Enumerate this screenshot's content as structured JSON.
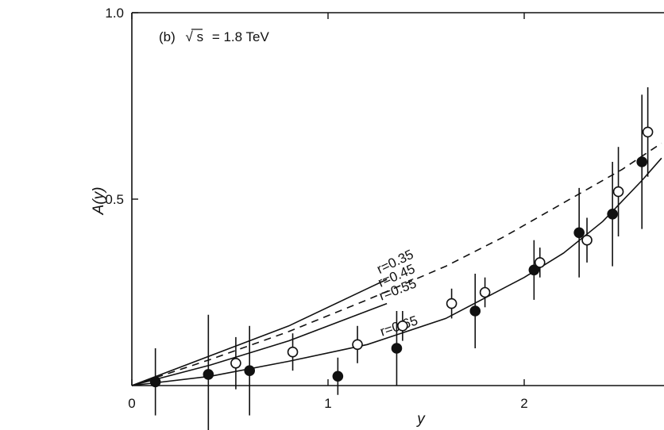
{
  "chart_data": {
    "type": "scatter",
    "title": "",
    "annotation": {
      "panel": "(b)",
      "sqrt_symbol": "√",
      "s_var": "s",
      "energy": "= 1.8 TeV"
    },
    "xlabel": "y",
    "ylabel": "A(y)",
    "xlim": [
      0,
      2.7
    ],
    "ylim": [
      0,
      1.0
    ],
    "x_ticks": [
      0,
      1,
      2
    ],
    "x_tick_labels": [
      "0",
      "1",
      "2"
    ],
    "y_ticks": [
      0.5,
      1.0
    ],
    "y_tick_labels": [
      "0.5",
      "1.0"
    ],
    "grid": false,
    "series": [
      {
        "marker": "filled-circle",
        "x": [
          0.12,
          0.39,
          0.6,
          1.05,
          1.35,
          1.75,
          2.05,
          2.28,
          2.45,
          2.6
        ],
        "y": [
          0.01,
          0.03,
          0.04,
          0.025,
          0.1,
          0.2,
          0.31,
          0.41,
          0.46,
          0.6
        ],
        "err": [
          0.09,
          0.16,
          0.12,
          0.05,
          0.1,
          0.1,
          0.08,
          0.12,
          0.14,
          0.18
        ]
      },
      {
        "marker": "open-circle",
        "x": [
          0.53,
          0.82,
          1.15,
          1.38,
          1.63,
          1.8,
          2.08,
          2.32,
          2.48,
          2.63
        ],
        "y": [
          0.06,
          0.09,
          0.11,
          0.16,
          0.22,
          0.25,
          0.33,
          0.39,
          0.52,
          0.68
        ],
        "err": [
          0.07,
          0.05,
          0.05,
          0.04,
          0.04,
          0.04,
          0.04,
          0.06,
          0.12,
          0.12
        ]
      }
    ],
    "curves": [
      {
        "label": "r=0.35",
        "style": "solid",
        "x": [
          0,
          0.4,
          0.8,
          1.2,
          1.3
        ],
        "y": [
          0,
          0.08,
          0.16,
          0.26,
          0.285
        ]
      },
      {
        "label": "r=0.45",
        "style": "dashed",
        "x": [
          0,
          0.4,
          0.8,
          1.2,
          1.6,
          1.9,
          2.1,
          2.3,
          2.5,
          2.7
        ],
        "y": [
          0,
          0.07,
          0.145,
          0.23,
          0.32,
          0.4,
          0.46,
          0.52,
          0.58,
          0.65
        ]
      },
      {
        "label": "r=0.55",
        "style": "solid",
        "x": [
          0,
          0.4,
          0.8,
          1.2,
          1.3
        ],
        "y": [
          0,
          0.055,
          0.12,
          0.2,
          0.22
        ]
      },
      {
        "label": "r=0.65",
        "style": "solid",
        "x": [
          0,
          0.4,
          0.8,
          1.2,
          1.6,
          2.0,
          2.2,
          2.4,
          2.6,
          2.7
        ],
        "y": [
          0,
          0.025,
          0.065,
          0.11,
          0.18,
          0.29,
          0.355,
          0.44,
          0.55,
          0.61
        ]
      }
    ]
  }
}
